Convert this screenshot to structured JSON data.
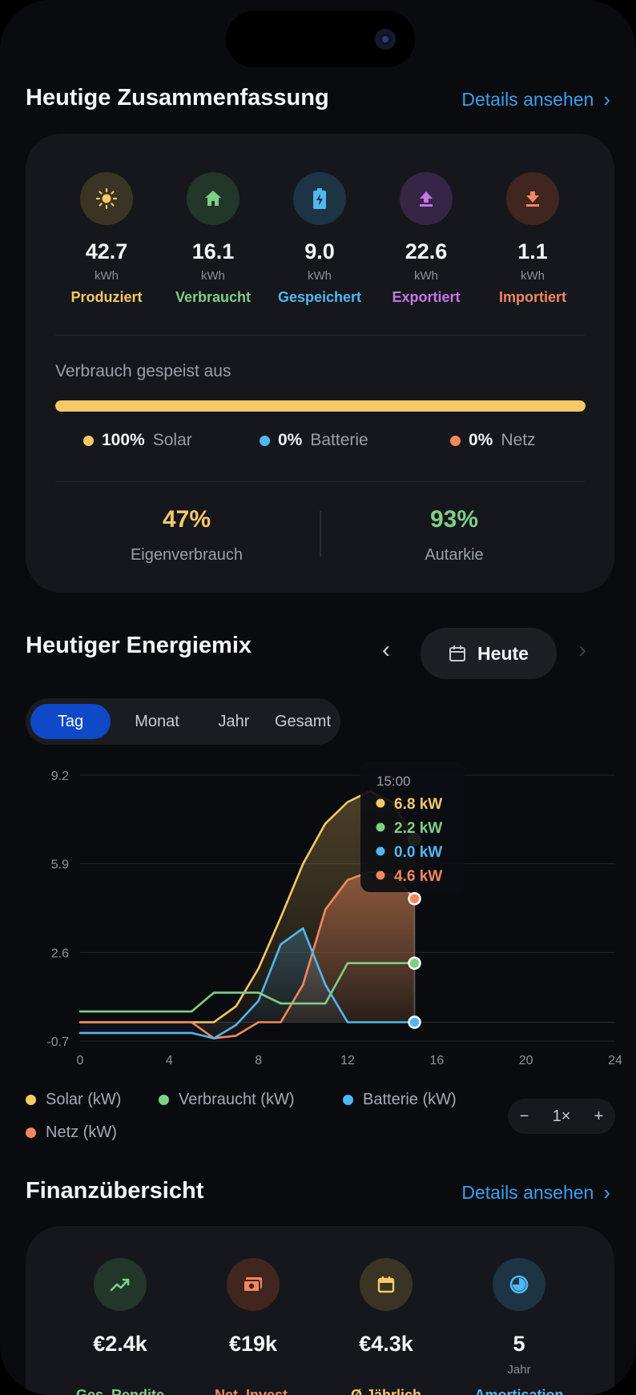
{
  "summary": {
    "title": "Heutige Zusammenfassung",
    "details_label": "Details ansehen",
    "metrics": [
      {
        "value": "42.7",
        "unit": "kWh",
        "label": "Produziert",
        "color": "#f6c965",
        "icon": "sun-icon"
      },
      {
        "value": "16.1",
        "unit": "kWh",
        "label": "Verbraucht",
        "color": "#7fcf87",
        "icon": "home-icon"
      },
      {
        "value": "9.0",
        "unit": "kWh",
        "label": "Gespeichert",
        "color": "#4fb8f2",
        "icon": "battery-icon"
      },
      {
        "value": "22.6",
        "unit": "kWh",
        "label": "Exportiert",
        "color": "#c576e8",
        "icon": "upload-icon"
      },
      {
        "value": "1.1",
        "unit": "kWh",
        "label": "Importiert",
        "color": "#f2885f",
        "icon": "download-icon"
      }
    ],
    "fed_from_label": "Verbrauch gespeist aus",
    "fed_from_solar_fraction": 1.0,
    "sources": [
      {
        "pct": "100%",
        "name": "Solar",
        "color": "#f6c965"
      },
      {
        "pct": "0%",
        "name": "Batterie",
        "color": "#4fb8f2"
      },
      {
        "pct": "0%",
        "name": "Netz",
        "color": "#f2885f"
      }
    ],
    "self_consumption": {
      "value": "47%",
      "label": "Eigenverbrauch",
      "color": "#f6c965"
    },
    "autarky": {
      "value": "93%",
      "label": "Autarkie",
      "color": "#7fcf87"
    }
  },
  "energy_mix": {
    "title": "Heutiger Energiemix",
    "date_label": "Heute",
    "tabs": [
      "Tag",
      "Monat",
      "Jahr",
      "Gesamt"
    ],
    "active_tab": 0,
    "tooltip": {
      "time": "15:00",
      "rows": [
        {
          "value": "6.8 kW",
          "color": "#f6c965"
        },
        {
          "value": "2.2 kW",
          "color": "#7fcf87"
        },
        {
          "value": "0.0 kW",
          "color": "#4fb8f2"
        },
        {
          "value": "4.6 kW",
          "color": "#f2885f"
        }
      ]
    },
    "legend": [
      {
        "label": "Solar (kW)",
        "color": "#f6c965"
      },
      {
        "label": "Verbraucht (kW)",
        "color": "#7fcf87"
      },
      {
        "label": "Batterie (kW)",
        "color": "#4fb8f2"
      },
      {
        "label": "Netz (kW)",
        "color": "#f2885f"
      }
    ],
    "zoom": {
      "minus": "−",
      "level": "1×",
      "plus": "+"
    }
  },
  "chart_data": {
    "type": "line",
    "x": [
      0,
      1,
      2,
      3,
      4,
      5,
      6,
      7,
      8,
      9,
      10,
      11,
      12,
      13,
      14,
      15
    ],
    "series": [
      {
        "name": "Solar (kW)",
        "color": "#f6c965",
        "values": [
          0,
          0,
          0,
          0,
          0,
          0,
          0,
          0.6,
          2.0,
          3.9,
          5.9,
          7.4,
          8.2,
          8.6,
          8.2,
          6.8
        ]
      },
      {
        "name": "Verbraucht (kW)",
        "color": "#7fcf87",
        "values": [
          0.4,
          0.4,
          0.4,
          0.4,
          0.4,
          0.4,
          1.1,
          1.1,
          1.1,
          0.7,
          0.7,
          0.7,
          2.2,
          2.2,
          2.2,
          2.2
        ]
      },
      {
        "name": "Batterie (kW)",
        "color": "#4fb8f2",
        "values": [
          -0.4,
          -0.4,
          -0.4,
          -0.4,
          -0.4,
          -0.4,
          -0.6,
          -0.1,
          0.8,
          2.9,
          3.5,
          1.4,
          0,
          0,
          0,
          0
        ]
      },
      {
        "name": "Netz (kW)",
        "color": "#f2885f",
        "values": [
          0,
          0,
          0,
          0,
          0,
          0,
          -0.6,
          -0.5,
          0,
          0,
          1.4,
          4.2,
          5.3,
          5.6,
          5.5,
          4.6
        ]
      }
    ],
    "xlim": [
      0,
      24
    ],
    "ylim": [
      -0.7,
      9.2
    ],
    "xticks": [
      "0",
      "4",
      "8",
      "12",
      "16",
      "20",
      "24"
    ],
    "yticks": [
      "9.2",
      "5.9",
      "2.6",
      "-0.7"
    ],
    "grid": true,
    "legend_position": "bottom"
  },
  "finance": {
    "title": "Finanzübersicht",
    "details_label": "Details ansehen",
    "items": [
      {
        "value": "€2.4k",
        "sub": "",
        "label": "Ges. Rendite",
        "color": "#7fcf87",
        "icon": "trend-up-icon"
      },
      {
        "value": "€19k",
        "sub": "",
        "label": "Net. Invest.",
        "color": "#f2885f",
        "icon": "cash-icon"
      },
      {
        "value": "€4.3k",
        "sub": "",
        "label": "Ø Jährlich",
        "color": "#f6c965",
        "icon": "calendar-icon"
      },
      {
        "value": "5",
        "sub": "Jahr",
        "label": "Amortisation",
        "color": "#4fb8f2",
        "icon": "clock-icon"
      }
    ]
  }
}
